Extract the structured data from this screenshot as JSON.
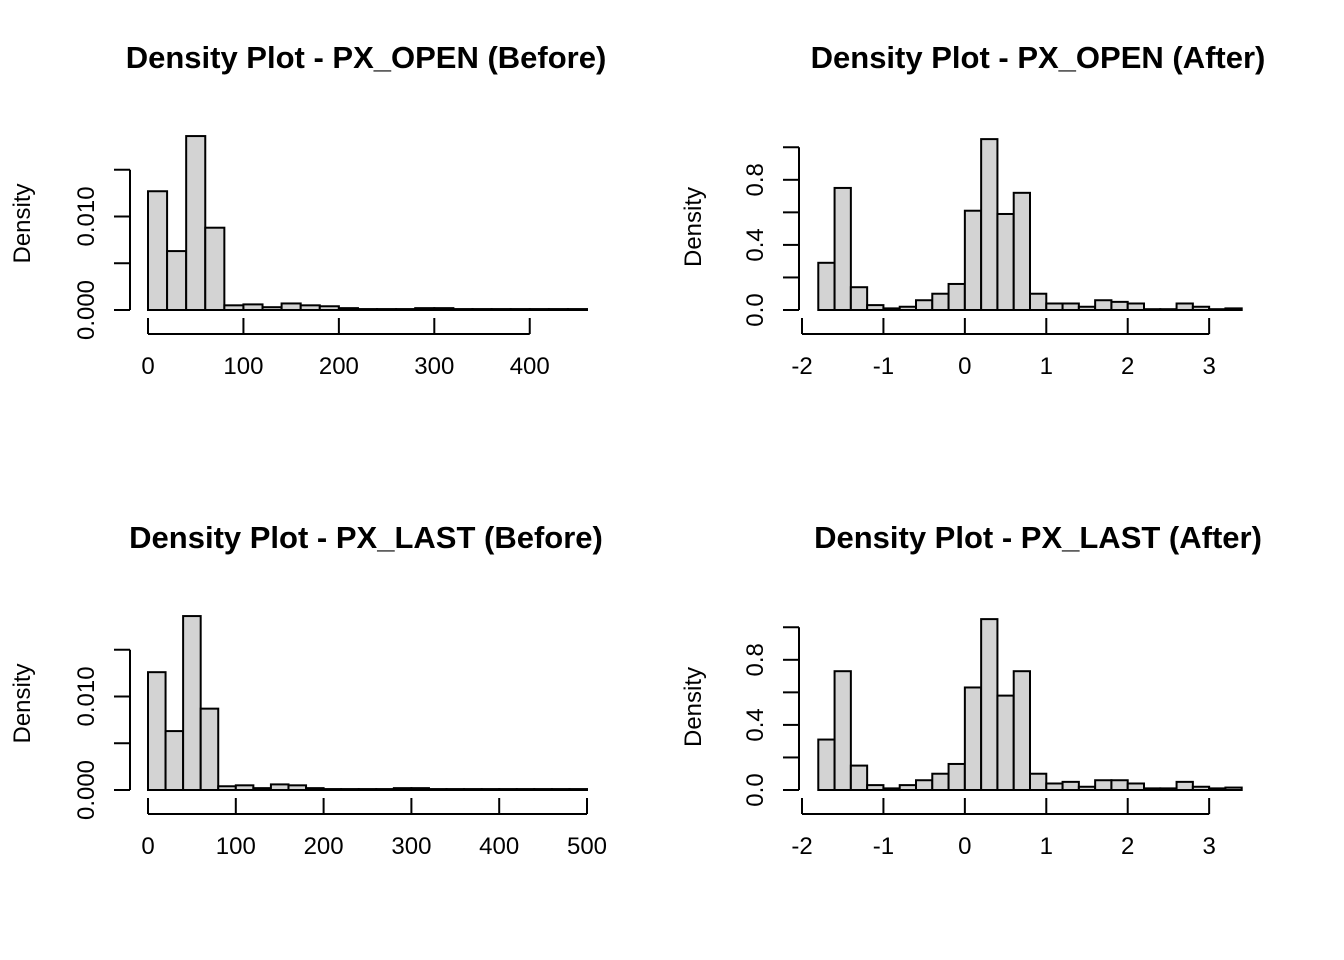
{
  "chart_data": [
    {
      "type": "bar",
      "title": "Density Plot -  PX_OPEN (Before)",
      "xlabel": "",
      "ylabel": "Density",
      "xlim": [
        0,
        460
      ],
      "ylim": [
        0,
        0.0185
      ],
      "x_ticks": [
        0,
        100,
        200,
        300,
        400
      ],
      "x_tick_labels": [
        "0",
        "100",
        "200",
        "300",
        "400"
      ],
      "y_ticks": [
        0.0,
        0.005,
        0.01,
        0.015
      ],
      "y_tick_labels": [
        "0.000",
        "",
        "0.010",
        ""
      ],
      "bins": [
        {
          "x0": 0,
          "x1": 20,
          "density": 0.0127
        },
        {
          "x0": 20,
          "x1": 40,
          "density": 0.0063
        },
        {
          "x0": 40,
          "x1": 60,
          "density": 0.0186
        },
        {
          "x0": 60,
          "x1": 80,
          "density": 0.0088
        },
        {
          "x0": 80,
          "x1": 100,
          "density": 0.0005
        },
        {
          "x0": 100,
          "x1": 120,
          "density": 0.0006
        },
        {
          "x0": 120,
          "x1": 140,
          "density": 0.0003
        },
        {
          "x0": 140,
          "x1": 160,
          "density": 0.0007
        },
        {
          "x0": 160,
          "x1": 180,
          "density": 0.0005
        },
        {
          "x0": 180,
          "x1": 200,
          "density": 0.0004
        },
        {
          "x0": 200,
          "x1": 220,
          "density": 0.0002
        },
        {
          "x0": 220,
          "x1": 240,
          "density": 0.0001
        },
        {
          "x0": 240,
          "x1": 260,
          "density": 0.0001
        },
        {
          "x0": 260,
          "x1": 280,
          "density": 0.0001
        },
        {
          "x0": 280,
          "x1": 300,
          "density": 0.0002
        },
        {
          "x0": 300,
          "x1": 320,
          "density": 0.0002
        },
        {
          "x0": 320,
          "x1": 340,
          "density": 0.0001
        },
        {
          "x0": 340,
          "x1": 360,
          "density": 0.0001
        },
        {
          "x0": 360,
          "x1": 380,
          "density": 0.0001
        },
        {
          "x0": 380,
          "x1": 400,
          "density": 0.0001
        },
        {
          "x0": 400,
          "x1": 420,
          "density": 0.0001
        },
        {
          "x0": 420,
          "x1": 440,
          "density": 0.0001
        },
        {
          "x0": 440,
          "x1": 460,
          "density": 0.0001
        }
      ]
    },
    {
      "type": "bar",
      "title": "Density Plot -  PX_OPEN (After)",
      "xlabel": "",
      "ylabel": "Density",
      "xlim": [
        -2,
        3.6
      ],
      "ylim": [
        0,
        1.02
      ],
      "x_ticks": [
        -2,
        -1,
        0,
        1,
        2,
        3
      ],
      "x_tick_labels": [
        "-2",
        "-1",
        "0",
        "1",
        "2",
        "3"
      ],
      "y_ticks": [
        0.0,
        0.2,
        0.4,
        0.6,
        0.8,
        1.0
      ],
      "y_tick_labels": [
        "0.0",
        "",
        "0.4",
        "",
        "0.8",
        ""
      ],
      "bins": [
        {
          "x0": -1.8,
          "x1": -1.6,
          "density": 0.29
        },
        {
          "x0": -1.6,
          "x1": -1.4,
          "density": 0.75
        },
        {
          "x0": -1.4,
          "x1": -1.2,
          "density": 0.14
        },
        {
          "x0": -1.2,
          "x1": -1.0,
          "density": 0.03
        },
        {
          "x0": -1.0,
          "x1": -0.8,
          "density": 0.01
        },
        {
          "x0": -0.8,
          "x1": -0.6,
          "density": 0.02
        },
        {
          "x0": -0.6,
          "x1": -0.4,
          "density": 0.06
        },
        {
          "x0": -0.4,
          "x1": -0.2,
          "density": 0.1
        },
        {
          "x0": -0.2,
          "x1": 0.0,
          "density": 0.16
        },
        {
          "x0": 0.0,
          "x1": 0.2,
          "density": 0.61
        },
        {
          "x0": 0.2,
          "x1": 0.4,
          "density": 1.05
        },
        {
          "x0": 0.4,
          "x1": 0.6,
          "density": 0.59
        },
        {
          "x0": 0.6,
          "x1": 0.8,
          "density": 0.72
        },
        {
          "x0": 0.8,
          "x1": 1.0,
          "density": 0.1
        },
        {
          "x0": 1.0,
          "x1": 1.2,
          "density": 0.04
        },
        {
          "x0": 1.2,
          "x1": 1.4,
          "density": 0.04
        },
        {
          "x0": 1.4,
          "x1": 1.6,
          "density": 0.02
        },
        {
          "x0": 1.6,
          "x1": 1.8,
          "density": 0.06
        },
        {
          "x0": 1.8,
          "x1": 2.0,
          "density": 0.05
        },
        {
          "x0": 2.0,
          "x1": 2.2,
          "density": 0.04
        },
        {
          "x0": 2.2,
          "x1": 2.4,
          "density": 0.005
        },
        {
          "x0": 2.4,
          "x1": 2.6,
          "density": 0.005
        },
        {
          "x0": 2.6,
          "x1": 2.8,
          "density": 0.04
        },
        {
          "x0": 2.8,
          "x1": 3.0,
          "density": 0.02
        },
        {
          "x0": 3.0,
          "x1": 3.2,
          "density": 0.005
        },
        {
          "x0": 3.2,
          "x1": 3.4,
          "density": 0.01
        }
      ]
    },
    {
      "type": "bar",
      "title": "Density Plot -  PX_LAST (Before)",
      "xlabel": "",
      "ylabel": "Density",
      "xlim": [
        0,
        500
      ],
      "ylim": [
        0,
        0.0185
      ],
      "x_ticks": [
        0,
        100,
        200,
        300,
        400,
        500
      ],
      "x_tick_labels": [
        "0",
        "100",
        "200",
        "300",
        "400",
        "500"
      ],
      "y_ticks": [
        0.0,
        0.005,
        0.01,
        0.015
      ],
      "y_tick_labels": [
        "0.000",
        "",
        "0.010",
        ""
      ],
      "bins": [
        {
          "x0": 0,
          "x1": 20,
          "density": 0.0126
        },
        {
          "x0": 20,
          "x1": 40,
          "density": 0.0063
        },
        {
          "x0": 40,
          "x1": 60,
          "density": 0.0186
        },
        {
          "x0": 60,
          "x1": 80,
          "density": 0.0087
        },
        {
          "x0": 80,
          "x1": 100,
          "density": 0.0004
        },
        {
          "x0": 100,
          "x1": 120,
          "density": 0.0005
        },
        {
          "x0": 120,
          "x1": 140,
          "density": 0.0002
        },
        {
          "x0": 140,
          "x1": 160,
          "density": 0.0006
        },
        {
          "x0": 160,
          "x1": 180,
          "density": 0.0005
        },
        {
          "x0": 180,
          "x1": 200,
          "density": 0.0002
        },
        {
          "x0": 200,
          "x1": 220,
          "density": 0.0001
        },
        {
          "x0": 220,
          "x1": 240,
          "density": 0.0001
        },
        {
          "x0": 240,
          "x1": 260,
          "density": 0.0001
        },
        {
          "x0": 260,
          "x1": 280,
          "density": 0.0001
        },
        {
          "x0": 280,
          "x1": 300,
          "density": 0.0002
        },
        {
          "x0": 300,
          "x1": 320,
          "density": 0.0002
        },
        {
          "x0": 320,
          "x1": 340,
          "density": 0.0001
        },
        {
          "x0": 340,
          "x1": 360,
          "density": 0.0001
        },
        {
          "x0": 360,
          "x1": 380,
          "density": 0.0001
        },
        {
          "x0": 380,
          "x1": 400,
          "density": 0.0001
        },
        {
          "x0": 400,
          "x1": 420,
          "density": 0.0001
        },
        {
          "x0": 420,
          "x1": 440,
          "density": 0.0001
        },
        {
          "x0": 440,
          "x1": 460,
          "density": 0.0001
        },
        {
          "x0": 460,
          "x1": 480,
          "density": 0.0001
        },
        {
          "x0": 480,
          "x1": 500,
          "density": 0.0001
        }
      ]
    },
    {
      "type": "bar",
      "title": "Density Plot -  PX_LAST (After)",
      "xlabel": "",
      "ylabel": "Density",
      "xlim": [
        -2,
        3.6
      ],
      "ylim": [
        0,
        1.02
      ],
      "x_ticks": [
        -2,
        -1,
        0,
        1,
        2,
        3
      ],
      "x_tick_labels": [
        "-2",
        "-1",
        "0",
        "1",
        "2",
        "3"
      ],
      "y_ticks": [
        0.0,
        0.2,
        0.4,
        0.6,
        0.8,
        1.0
      ],
      "y_tick_labels": [
        "0.0",
        "",
        "0.4",
        "",
        "0.8",
        ""
      ],
      "bins": [
        {
          "x0": -1.8,
          "x1": -1.6,
          "density": 0.31
        },
        {
          "x0": -1.6,
          "x1": -1.4,
          "density": 0.73
        },
        {
          "x0": -1.4,
          "x1": -1.2,
          "density": 0.15
        },
        {
          "x0": -1.2,
          "x1": -1.0,
          "density": 0.03
        },
        {
          "x0": -1.0,
          "x1": -0.8,
          "density": 0.01
        },
        {
          "x0": -0.8,
          "x1": -0.6,
          "density": 0.03
        },
        {
          "x0": -0.6,
          "x1": -0.4,
          "density": 0.06
        },
        {
          "x0": -0.4,
          "x1": -0.2,
          "density": 0.1
        },
        {
          "x0": -0.2,
          "x1": 0.0,
          "density": 0.16
        },
        {
          "x0": 0.0,
          "x1": 0.2,
          "density": 0.63
        },
        {
          "x0": 0.2,
          "x1": 0.4,
          "density": 1.05
        },
        {
          "x0": 0.4,
          "x1": 0.6,
          "density": 0.58
        },
        {
          "x0": 0.6,
          "x1": 0.8,
          "density": 0.73
        },
        {
          "x0": 0.8,
          "x1": 1.0,
          "density": 0.1
        },
        {
          "x0": 1.0,
          "x1": 1.2,
          "density": 0.04
        },
        {
          "x0": 1.2,
          "x1": 1.4,
          "density": 0.05
        },
        {
          "x0": 1.4,
          "x1": 1.6,
          "density": 0.02
        },
        {
          "x0": 1.6,
          "x1": 1.8,
          "density": 0.06
        },
        {
          "x0": 1.8,
          "x1": 2.0,
          "density": 0.06
        },
        {
          "x0": 2.0,
          "x1": 2.2,
          "density": 0.04
        },
        {
          "x0": 2.2,
          "x1": 2.4,
          "density": 0.01
        },
        {
          "x0": 2.4,
          "x1": 2.6,
          "density": 0.01
        },
        {
          "x0": 2.6,
          "x1": 2.8,
          "density": 0.05
        },
        {
          "x0": 2.8,
          "x1": 3.0,
          "density": 0.02
        },
        {
          "x0": 3.0,
          "x1": 3.2,
          "density": 0.01
        },
        {
          "x0": 3.2,
          "x1": 3.4,
          "density": 0.015
        }
      ]
    }
  ]
}
